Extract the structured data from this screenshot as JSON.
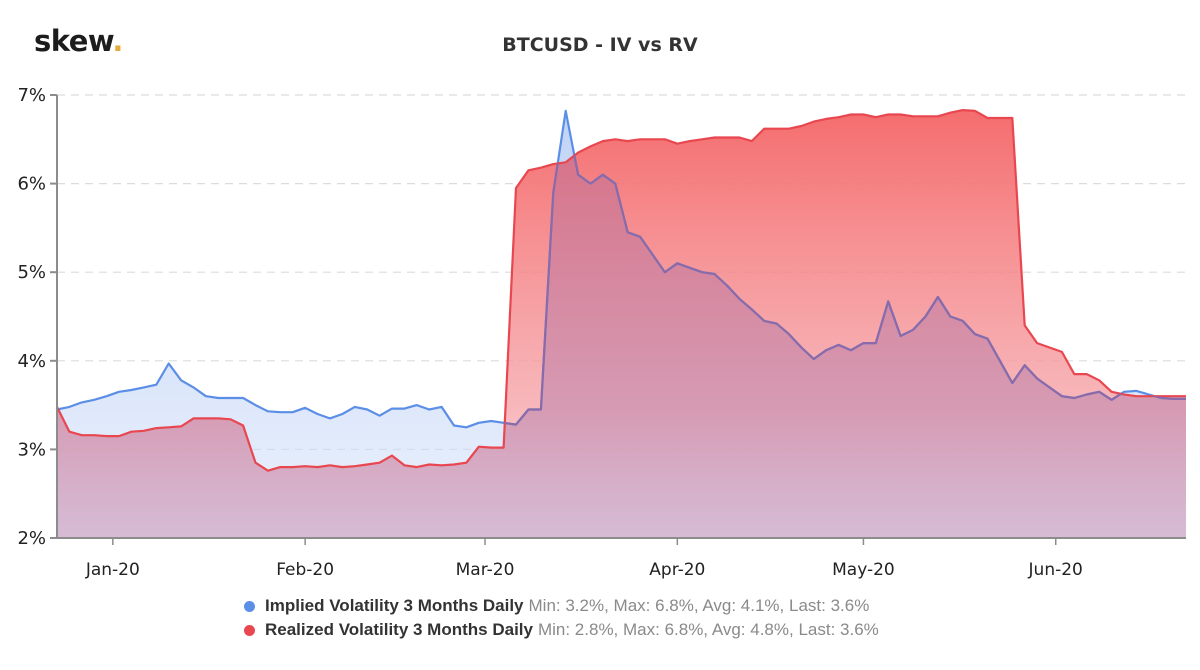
{
  "logo": {
    "text": "skew",
    "dot": "."
  },
  "chart_data": {
    "type": "area",
    "title": "BTCUSD - IV vs RV",
    "xlabel": "",
    "ylabel": "",
    "ylim": [
      2,
      7
    ],
    "y_ticks": [
      "2%",
      "3%",
      "4%",
      "5%",
      "6%",
      "7%"
    ],
    "y_tick_values": [
      2,
      3,
      4,
      5,
      6,
      7
    ],
    "x_ticks": [
      "Jan-20",
      "Feb-20",
      "Mar-20",
      "Apr-20",
      "May-20",
      "Jun-20"
    ],
    "x_tick_days": [
      1,
      32,
      61,
      92,
      122,
      153
    ],
    "x_range_days": [
      -8,
      174
    ],
    "grid": "horizontal dashed",
    "legend_position": "bottom",
    "colors": {
      "iv": "#5b8ee6",
      "rv": "#e8474f",
      "overlap": "#b9718f"
    },
    "series": [
      {
        "name": "Implied Volatility 3 Months Daily",
        "stats": "Min: 3.2%, Max: 6.8%, Avg: 4.1%, Last: 3.6%",
        "x": [
          -8,
          -6,
          -4,
          -2,
          0,
          2,
          4,
          6,
          8,
          10,
          12,
          14,
          16,
          18,
          20,
          22,
          24,
          26,
          28,
          30,
          32,
          34,
          36,
          38,
          40,
          42,
          44,
          46,
          48,
          50,
          52,
          54,
          56,
          58,
          60,
          62,
          64,
          66,
          68,
          70,
          72,
          74,
          76,
          78,
          80,
          82,
          84,
          86,
          88,
          90,
          92,
          94,
          96,
          98,
          100,
          102,
          104,
          106,
          108,
          110,
          112,
          114,
          116,
          118,
          120,
          122,
          124,
          126,
          128,
          130,
          132,
          134,
          136,
          138,
          140,
          142,
          144,
          146,
          148,
          150,
          152,
          154,
          156,
          158,
          160,
          162,
          164,
          166,
          168,
          170,
          172,
          174
        ],
        "values": [
          3.45,
          3.48,
          3.53,
          3.56,
          3.6,
          3.65,
          3.67,
          3.7,
          3.73,
          3.97,
          3.78,
          3.7,
          3.6,
          3.58,
          3.58,
          3.58,
          3.5,
          3.43,
          3.42,
          3.42,
          3.47,
          3.4,
          3.35,
          3.4,
          3.48,
          3.45,
          3.38,
          3.46,
          3.46,
          3.5,
          3.45,
          3.48,
          3.27,
          3.25,
          3.3,
          3.32,
          3.3,
          3.28,
          3.45,
          3.45,
          5.9,
          6.82,
          6.1,
          6.0,
          6.1,
          6.0,
          5.45,
          5.4,
          5.2,
          5.0,
          5.1,
          5.05,
          5.0,
          4.98,
          4.85,
          4.7,
          4.58,
          4.45,
          4.42,
          4.3,
          4.15,
          4.02,
          4.12,
          4.18,
          4.12,
          4.2,
          4.2,
          4.67,
          4.28,
          4.35,
          4.5,
          4.72,
          4.5,
          4.45,
          4.3,
          4.25,
          4.0,
          3.75,
          3.95,
          3.8,
          3.7,
          3.6,
          3.58,
          3.62,
          3.65,
          3.56,
          3.65,
          3.66,
          3.62,
          3.58,
          3.57,
          3.57
        ]
      },
      {
        "name": "Realized Volatility 3 Months Daily",
        "stats": "Min: 2.8%, Max: 6.8%, Avg: 4.8%, Last: 3.6%",
        "x": [
          -8,
          -6,
          -4,
          -2,
          0,
          2,
          4,
          6,
          8,
          10,
          12,
          14,
          16,
          18,
          20,
          22,
          24,
          26,
          28,
          30,
          32,
          34,
          36,
          38,
          40,
          42,
          44,
          46,
          48,
          50,
          52,
          54,
          56,
          58,
          60,
          62,
          64,
          66,
          68,
          70,
          72,
          74,
          76,
          78,
          80,
          82,
          84,
          86,
          88,
          90,
          92,
          94,
          96,
          98,
          100,
          102,
          104,
          106,
          108,
          110,
          112,
          114,
          116,
          118,
          120,
          122,
          124,
          126,
          128,
          130,
          132,
          134,
          136,
          138,
          140,
          142,
          144,
          146,
          148,
          150,
          152,
          154,
          156,
          158,
          160,
          162,
          164,
          166,
          168,
          170,
          172,
          174
        ],
        "values": [
          3.48,
          3.2,
          3.16,
          3.16,
          3.15,
          3.15,
          3.2,
          3.21,
          3.24,
          3.25,
          3.26,
          3.35,
          3.35,
          3.35,
          3.34,
          3.27,
          2.85,
          2.76,
          2.8,
          2.8,
          2.81,
          2.8,
          2.82,
          2.8,
          2.81,
          2.83,
          2.85,
          2.93,
          2.82,
          2.8,
          2.83,
          2.82,
          2.83,
          2.85,
          3.03,
          3.02,
          3.02,
          5.95,
          6.15,
          6.18,
          6.22,
          6.24,
          6.35,
          6.42,
          6.48,
          6.5,
          6.48,
          6.5,
          6.5,
          6.5,
          6.45,
          6.48,
          6.5,
          6.52,
          6.52,
          6.52,
          6.48,
          6.62,
          6.62,
          6.62,
          6.65,
          6.7,
          6.73,
          6.75,
          6.78,
          6.78,
          6.75,
          6.78,
          6.78,
          6.76,
          6.76,
          6.76,
          6.8,
          6.83,
          6.82,
          6.74,
          6.74,
          6.74,
          4.4,
          4.2,
          4.15,
          4.1,
          3.85,
          3.85,
          3.78,
          3.65,
          3.62,
          3.6,
          3.6,
          3.6,
          3.6,
          3.6
        ]
      }
    ]
  }
}
